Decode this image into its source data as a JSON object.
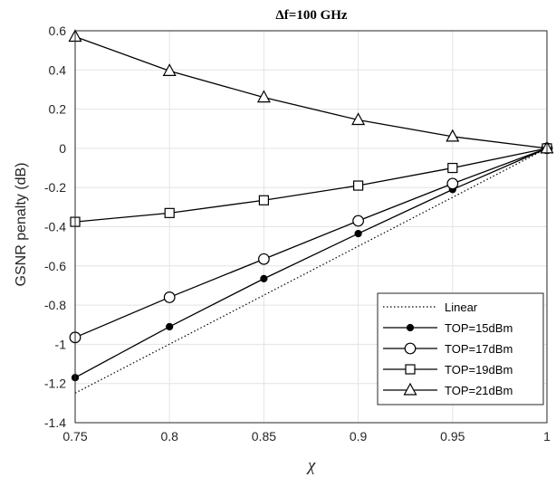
{
  "chart_data": {
    "type": "line",
    "title": "Δf=100 GHz",
    "xlabel": "χ",
    "ylabel": "GSNR penalty (dB)",
    "xlim": [
      0.75,
      1
    ],
    "ylim": [
      -1.4,
      0.6
    ],
    "x_ticks": [
      "0.75",
      "0.8",
      "0.85",
      "0.9",
      "0.95",
      "1"
    ],
    "y_ticks": [
      "0.6",
      "0.4",
      "0.2",
      "0",
      "-0.2",
      "-0.4",
      "-0.6",
      "-0.8",
      "-1",
      "-1.2",
      "-1.4"
    ],
    "grid": true,
    "legend_position": "bottom-right",
    "x": [
      0.75,
      0.8,
      0.85,
      0.9,
      0.95,
      1
    ],
    "series": [
      {
        "name": "Linear",
        "style": "dotted",
        "marker": "none",
        "x": [
          0.75,
          1
        ],
        "values": [
          -1.249,
          0
        ]
      },
      {
        "name": "TOP=15dBm",
        "style": "solid",
        "marker": "filled-circle",
        "values": [
          -1.17,
          -0.91,
          -0.665,
          -0.435,
          -0.21,
          0
        ]
      },
      {
        "name": "TOP=17dBm",
        "style": "solid",
        "marker": "open-circle",
        "values": [
          -0.965,
          -0.76,
          -0.565,
          -0.37,
          -0.18,
          0
        ]
      },
      {
        "name": "TOP=19dBm",
        "style": "solid",
        "marker": "square",
        "values": [
          -0.375,
          -0.33,
          -0.265,
          -0.19,
          -0.1,
          0
        ]
      },
      {
        "name": "TOP=21dBm",
        "style": "solid",
        "marker": "triangle",
        "values": [
          0.57,
          0.395,
          0.26,
          0.145,
          0.06,
          0
        ]
      }
    ]
  }
}
